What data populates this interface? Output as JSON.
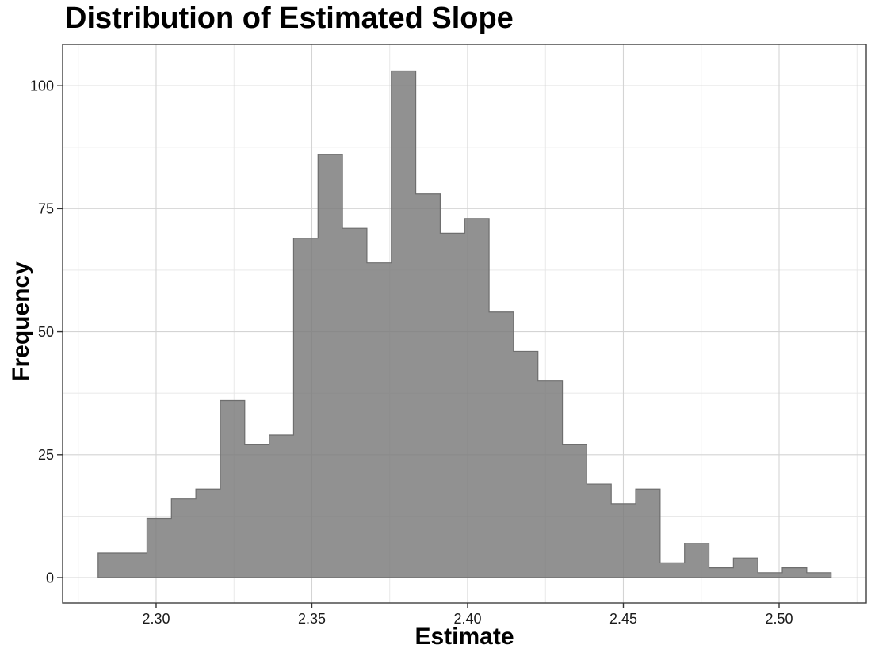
{
  "title": "Distribution of Estimated Slope",
  "chart_data": {
    "type": "bar",
    "subtype": "histogram",
    "title": "Distribution of Estimated Slope",
    "xlabel": "Estimate",
    "ylabel": "Frequency",
    "bins": {
      "start": 2.28138,
      "width": 0.0078444,
      "count": 30
    },
    "values": [
      5,
      5,
      12,
      16,
      18,
      36,
      27,
      29,
      69,
      86,
      71,
      64,
      103,
      78,
      70,
      73,
      54,
      46,
      40,
      27,
      19,
      15,
      18,
      3,
      7,
      2,
      4,
      1,
      2,
      1
    ],
    "x_ticks": [
      2.3,
      2.35,
      2.4,
      2.45,
      2.5
    ],
    "x_tick_labels": [
      "2.30",
      "2.35",
      "2.40",
      "2.45",
      "2.50"
    ],
    "y_ticks": [
      0,
      25,
      50,
      75,
      100
    ],
    "y_tick_labels": [
      "0",
      "25",
      "50",
      "75",
      "100"
    ],
    "x_minor_ticks": [
      2.275,
      2.325,
      2.375,
      2.425,
      2.475,
      2.525
    ],
    "y_minor_ticks": [
      12.5,
      37.5,
      62.5,
      87.5
    ],
    "xlim": [
      2.26998,
      2.52799
    ],
    "ylim": [
      -5.15,
      108.4
    ],
    "grid": "major+minor",
    "legend": "none",
    "colors": {
      "bar_fill": "#7c7c7c",
      "bar_fill_alpha": 0.84,
      "bar_stroke": "#6e6e6e",
      "grid_major": "#d4d4d4",
      "grid_minor": "#e6e6e6",
      "panel_border": "#3f3f3f",
      "tick": "#333333",
      "tick_label": "#1a1a1a",
      "text": "#000000",
      "background": "#ffffff"
    }
  }
}
